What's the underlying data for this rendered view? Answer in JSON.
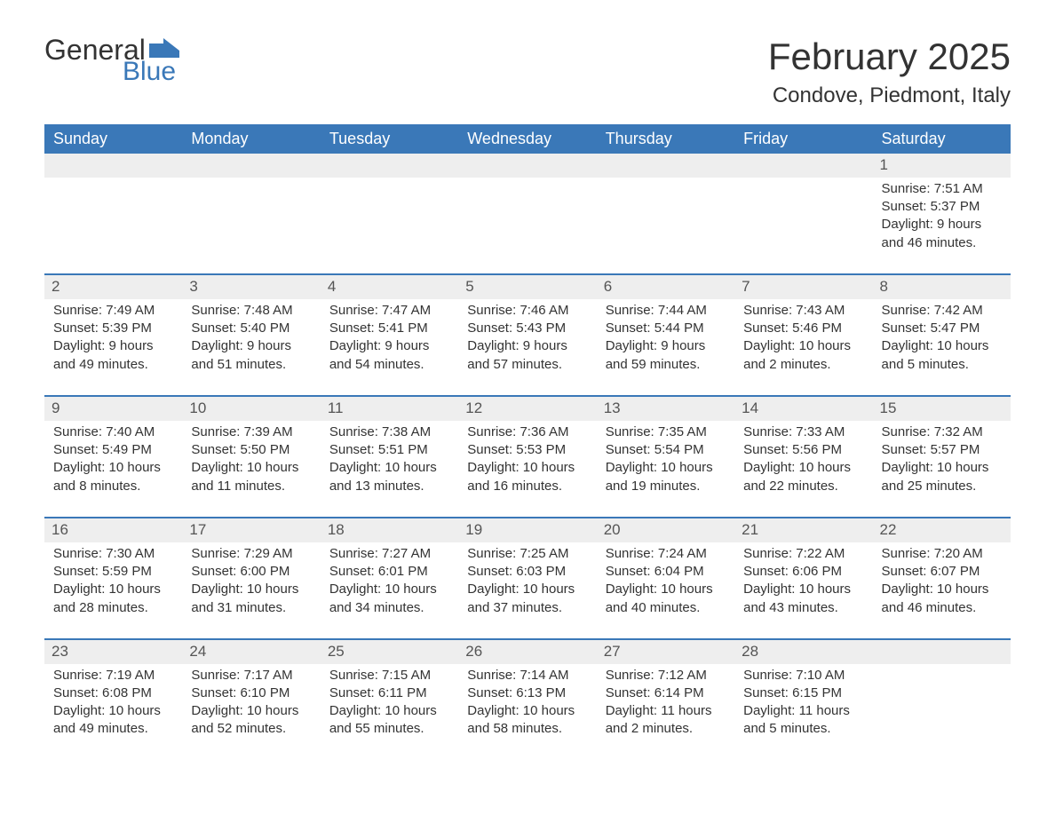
{
  "logo": {
    "word1": "General",
    "word2": "Blue",
    "icon_color": "#3a78b8"
  },
  "title": "February 2025",
  "location": "Condove, Piedmont, Italy",
  "colors": {
    "header_bg": "#3a78b8",
    "header_text": "#ffffff",
    "daynum_bg": "#eeeeee",
    "daynum_border": "#3a78b8",
    "text": "#333333",
    "page_bg": "#ffffff"
  },
  "day_headers": [
    "Sunday",
    "Monday",
    "Tuesday",
    "Wednesday",
    "Thursday",
    "Friday",
    "Saturday"
  ],
  "weeks": [
    [
      null,
      null,
      null,
      null,
      null,
      null,
      {
        "n": "1",
        "sunrise": "Sunrise: 7:51 AM",
        "sunset": "Sunset: 5:37 PM",
        "daylight": "Daylight: 9 hours and 46 minutes."
      }
    ],
    [
      {
        "n": "2",
        "sunrise": "Sunrise: 7:49 AM",
        "sunset": "Sunset: 5:39 PM",
        "daylight": "Daylight: 9 hours and 49 minutes."
      },
      {
        "n": "3",
        "sunrise": "Sunrise: 7:48 AM",
        "sunset": "Sunset: 5:40 PM",
        "daylight": "Daylight: 9 hours and 51 minutes."
      },
      {
        "n": "4",
        "sunrise": "Sunrise: 7:47 AM",
        "sunset": "Sunset: 5:41 PM",
        "daylight": "Daylight: 9 hours and 54 minutes."
      },
      {
        "n": "5",
        "sunrise": "Sunrise: 7:46 AM",
        "sunset": "Sunset: 5:43 PM",
        "daylight": "Daylight: 9 hours and 57 minutes."
      },
      {
        "n": "6",
        "sunrise": "Sunrise: 7:44 AM",
        "sunset": "Sunset: 5:44 PM",
        "daylight": "Daylight: 9 hours and 59 minutes."
      },
      {
        "n": "7",
        "sunrise": "Sunrise: 7:43 AM",
        "sunset": "Sunset: 5:46 PM",
        "daylight": "Daylight: 10 hours and 2 minutes."
      },
      {
        "n": "8",
        "sunrise": "Sunrise: 7:42 AM",
        "sunset": "Sunset: 5:47 PM",
        "daylight": "Daylight: 10 hours and 5 minutes."
      }
    ],
    [
      {
        "n": "9",
        "sunrise": "Sunrise: 7:40 AM",
        "sunset": "Sunset: 5:49 PM",
        "daylight": "Daylight: 10 hours and 8 minutes."
      },
      {
        "n": "10",
        "sunrise": "Sunrise: 7:39 AM",
        "sunset": "Sunset: 5:50 PM",
        "daylight": "Daylight: 10 hours and 11 minutes."
      },
      {
        "n": "11",
        "sunrise": "Sunrise: 7:38 AM",
        "sunset": "Sunset: 5:51 PM",
        "daylight": "Daylight: 10 hours and 13 minutes."
      },
      {
        "n": "12",
        "sunrise": "Sunrise: 7:36 AM",
        "sunset": "Sunset: 5:53 PM",
        "daylight": "Daylight: 10 hours and 16 minutes."
      },
      {
        "n": "13",
        "sunrise": "Sunrise: 7:35 AM",
        "sunset": "Sunset: 5:54 PM",
        "daylight": "Daylight: 10 hours and 19 minutes."
      },
      {
        "n": "14",
        "sunrise": "Sunrise: 7:33 AM",
        "sunset": "Sunset: 5:56 PM",
        "daylight": "Daylight: 10 hours and 22 minutes."
      },
      {
        "n": "15",
        "sunrise": "Sunrise: 7:32 AM",
        "sunset": "Sunset: 5:57 PM",
        "daylight": "Daylight: 10 hours and 25 minutes."
      }
    ],
    [
      {
        "n": "16",
        "sunrise": "Sunrise: 7:30 AM",
        "sunset": "Sunset: 5:59 PM",
        "daylight": "Daylight: 10 hours and 28 minutes."
      },
      {
        "n": "17",
        "sunrise": "Sunrise: 7:29 AM",
        "sunset": "Sunset: 6:00 PM",
        "daylight": "Daylight: 10 hours and 31 minutes."
      },
      {
        "n": "18",
        "sunrise": "Sunrise: 7:27 AM",
        "sunset": "Sunset: 6:01 PM",
        "daylight": "Daylight: 10 hours and 34 minutes."
      },
      {
        "n": "19",
        "sunrise": "Sunrise: 7:25 AM",
        "sunset": "Sunset: 6:03 PM",
        "daylight": "Daylight: 10 hours and 37 minutes."
      },
      {
        "n": "20",
        "sunrise": "Sunrise: 7:24 AM",
        "sunset": "Sunset: 6:04 PM",
        "daylight": "Daylight: 10 hours and 40 minutes."
      },
      {
        "n": "21",
        "sunrise": "Sunrise: 7:22 AM",
        "sunset": "Sunset: 6:06 PM",
        "daylight": "Daylight: 10 hours and 43 minutes."
      },
      {
        "n": "22",
        "sunrise": "Sunrise: 7:20 AM",
        "sunset": "Sunset: 6:07 PM",
        "daylight": "Daylight: 10 hours and 46 minutes."
      }
    ],
    [
      {
        "n": "23",
        "sunrise": "Sunrise: 7:19 AM",
        "sunset": "Sunset: 6:08 PM",
        "daylight": "Daylight: 10 hours and 49 minutes."
      },
      {
        "n": "24",
        "sunrise": "Sunrise: 7:17 AM",
        "sunset": "Sunset: 6:10 PM",
        "daylight": "Daylight: 10 hours and 52 minutes."
      },
      {
        "n": "25",
        "sunrise": "Sunrise: 7:15 AM",
        "sunset": "Sunset: 6:11 PM",
        "daylight": "Daylight: 10 hours and 55 minutes."
      },
      {
        "n": "26",
        "sunrise": "Sunrise: 7:14 AM",
        "sunset": "Sunset: 6:13 PM",
        "daylight": "Daylight: 10 hours and 58 minutes."
      },
      {
        "n": "27",
        "sunrise": "Sunrise: 7:12 AM",
        "sunset": "Sunset: 6:14 PM",
        "daylight": "Daylight: 11 hours and 2 minutes."
      },
      {
        "n": "28",
        "sunrise": "Sunrise: 7:10 AM",
        "sunset": "Sunset: 6:15 PM",
        "daylight": "Daylight: 11 hours and 5 minutes."
      },
      null
    ]
  ]
}
